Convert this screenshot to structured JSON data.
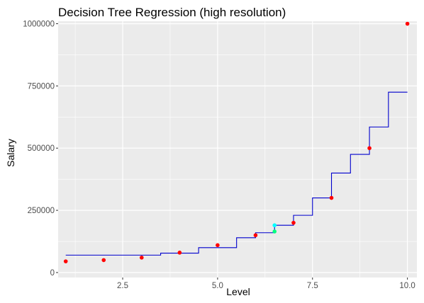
{
  "chart_data": {
    "type": "scatter",
    "title": "Decision Tree Regression (high resolution)",
    "xlabel": "Level",
    "ylabel": "Salary",
    "xlim": [
      0.8,
      10.25
    ],
    "ylim": [
      -20000,
      1010000
    ],
    "x_ticks": [
      2.5,
      5.0,
      7.5,
      10.0
    ],
    "x_tick_labels": [
      "2.5",
      "5.0",
      "7.5",
      "10.0"
    ],
    "y_ticks": [
      0,
      250000,
      500000,
      750000,
      1000000
    ],
    "y_tick_labels": [
      "0",
      "250000",
      "500000",
      "750000",
      "1000000"
    ],
    "grid": true,
    "panel_background": "#ebebeb",
    "grid_color": "#ffffff",
    "series": [
      {
        "type": "scatter",
        "color": "#ff0000",
        "points": [
          {
            "x": 1,
            "y": 45000
          },
          {
            "x": 2,
            "y": 50000
          },
          {
            "x": 3,
            "y": 60000
          },
          {
            "x": 4,
            "y": 80000
          },
          {
            "x": 5,
            "y": 110000
          },
          {
            "x": 6,
            "y": 150000
          },
          {
            "x": 7,
            "y": 200000
          },
          {
            "x": 8,
            "y": 300000
          },
          {
            "x": 9,
            "y": 500000
          },
          {
            "x": 10,
            "y": 1000000
          }
        ]
      },
      {
        "type": "step",
        "color": "#0000cd",
        "x": [
          1.0,
          1.5,
          2.5,
          3.5,
          4.5,
          5.5,
          6.0,
          6.5,
          7.0,
          7.5,
          8.0,
          8.5,
          9.0,
          9.5,
          10.0
        ],
        "y": [
          70000,
          70000,
          70000,
          78000,
          100000,
          140000,
          160000,
          190000,
          230000,
          300000,
          400000,
          475000,
          585000,
          725000,
          725000
        ],
        "steps": [
          {
            "x0": 1.0,
            "x1": 3.5,
            "y": 70000
          },
          {
            "x0": 3.5,
            "x1": 4.5,
            "y": 78000
          },
          {
            "x0": 4.5,
            "x1": 5.5,
            "y": 100000
          },
          {
            "x0": 5.5,
            "x1": 6.0,
            "y": 140000
          },
          {
            "x0": 6.0,
            "x1": 6.5,
            "y": 160000
          },
          {
            "x0": 6.5,
            "x1": 7.0,
            "y": 190000
          },
          {
            "x0": 7.0,
            "x1": 7.5,
            "y": 230000
          },
          {
            "x0": 7.5,
            "x1": 8.0,
            "y": 300000
          },
          {
            "x0": 8.0,
            "x1": 8.5,
            "y": 400000
          },
          {
            "x0": 8.5,
            "x1": 9.0,
            "y": 475000
          },
          {
            "x0": 9.0,
            "x1": 9.5,
            "y": 585000
          },
          {
            "x0": 9.5,
            "x1": 10.0,
            "y": 725000
          }
        ]
      },
      {
        "type": "scatter",
        "color": "#00ff7f",
        "points": [
          {
            "x": 6.5,
            "y": 165000
          }
        ]
      },
      {
        "type": "scatter",
        "color": "#00ffff",
        "points": [
          {
            "x": 6.5,
            "y": 190000
          }
        ]
      }
    ]
  }
}
